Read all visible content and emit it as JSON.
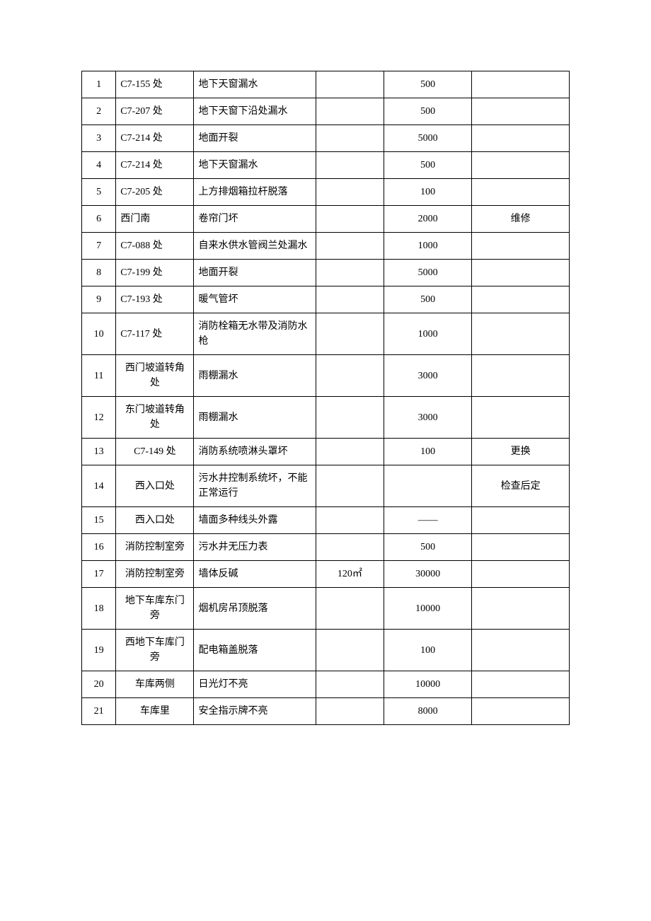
{
  "table": {
    "columns": {
      "idx_width_pct": 7,
      "loc_width_pct": 16,
      "desc_width_pct": 25,
      "qty_width_pct": 14,
      "cost_width_pct": 18,
      "note_width_pct": 20
    },
    "font_size_pt": 14,
    "border_color": "#000000",
    "text_color": "#000000",
    "background_color": "#ffffff",
    "rows": [
      {
        "idx": "1",
        "loc": "C7-155 处",
        "loc_align": "left",
        "desc": "地下天窗漏水",
        "qty": "",
        "cost": "500",
        "note": ""
      },
      {
        "idx": "2",
        "loc": "C7-207 处",
        "loc_align": "left",
        "desc": "地下天窗下沿处漏水",
        "qty": "",
        "cost": "500",
        "note": ""
      },
      {
        "idx": "3",
        "loc": "C7-214 处",
        "loc_align": "left",
        "desc": "地面开裂",
        "qty": "",
        "cost": "5000",
        "note": ""
      },
      {
        "idx": "4",
        "loc": "C7-214 处",
        "loc_align": "left",
        "desc": "地下天窗漏水",
        "qty": "",
        "cost": "500",
        "note": ""
      },
      {
        "idx": "5",
        "loc": "C7-205 处",
        "loc_align": "left",
        "desc": "上方排烟箱拉杆脱落",
        "qty": "",
        "cost": "100",
        "note": ""
      },
      {
        "idx": "6",
        "loc": "西门南",
        "loc_align": "left",
        "desc": "卷帘门坏",
        "qty": "",
        "cost": "2000",
        "note": "维修"
      },
      {
        "idx": "7",
        "loc": "C7-088 处",
        "loc_align": "left",
        "desc": "自来水供水管阀兰处漏水",
        "qty": "",
        "cost": "1000",
        "note": ""
      },
      {
        "idx": "8",
        "loc": "C7-199 处",
        "loc_align": "left",
        "desc": "地面开裂",
        "qty": "",
        "cost": "5000",
        "note": ""
      },
      {
        "idx": "9",
        "loc": "C7-193 处",
        "loc_align": "left",
        "desc": "暖气管坏",
        "qty": "",
        "cost": "500",
        "note": ""
      },
      {
        "idx": "10",
        "loc": "C7-117 处",
        "loc_align": "left",
        "desc": "消防栓箱无水带及消防水枪",
        "qty": "",
        "cost": "1000",
        "note": ""
      },
      {
        "idx": "11",
        "loc": "西门坡道转角处",
        "loc_align": "center",
        "desc": "雨棚漏水",
        "qty": "",
        "cost": "3000",
        "note": ""
      },
      {
        "idx": "12",
        "loc": "东门坡道转角处",
        "loc_align": "center",
        "desc": "雨棚漏水",
        "qty": "",
        "cost": "3000",
        "note": ""
      },
      {
        "idx": "13",
        "loc": "C7-149 处",
        "loc_align": "center",
        "desc": "消防系统喷淋头罩坏",
        "qty": "",
        "cost": "100",
        "note": "更换"
      },
      {
        "idx": "14",
        "loc": "西入口处",
        "loc_align": "center",
        "desc": "污水井控制系统坏，不能正常运行",
        "qty": "",
        "cost": "",
        "note": "检查后定"
      },
      {
        "idx": "15",
        "loc": "西入口处",
        "loc_align": "center",
        "desc": "墙面多种线头外露",
        "qty": "",
        "cost": "——",
        "note": ""
      },
      {
        "idx": "16",
        "loc": "消防控制室旁",
        "loc_align": "center",
        "desc": "污水井无压力表",
        "qty": "",
        "cost": "500",
        "note": ""
      },
      {
        "idx": "17",
        "loc": "消防控制室旁",
        "loc_align": "center",
        "desc": "墙体反碱",
        "qty": "120㎡",
        "cost": "30000",
        "note": ""
      },
      {
        "idx": "18",
        "loc": "地下车库东门旁",
        "loc_align": "center",
        "desc": "烟机房吊顶脱落",
        "qty": "",
        "cost": "10000",
        "note": ""
      },
      {
        "idx": "19",
        "loc": "西地下车库门旁",
        "loc_align": "center",
        "desc": "配电箱盖脱落",
        "qty": "",
        "cost": "100",
        "note": ""
      },
      {
        "idx": "20",
        "loc": "车库两侧",
        "loc_align": "center",
        "desc": "日光灯不亮",
        "qty": "",
        "cost": "10000",
        "note": ""
      },
      {
        "idx": "21",
        "loc": "车库里",
        "loc_align": "center",
        "desc": "安全指示牌不亮",
        "qty": "",
        "cost": "8000",
        "note": ""
      }
    ]
  }
}
